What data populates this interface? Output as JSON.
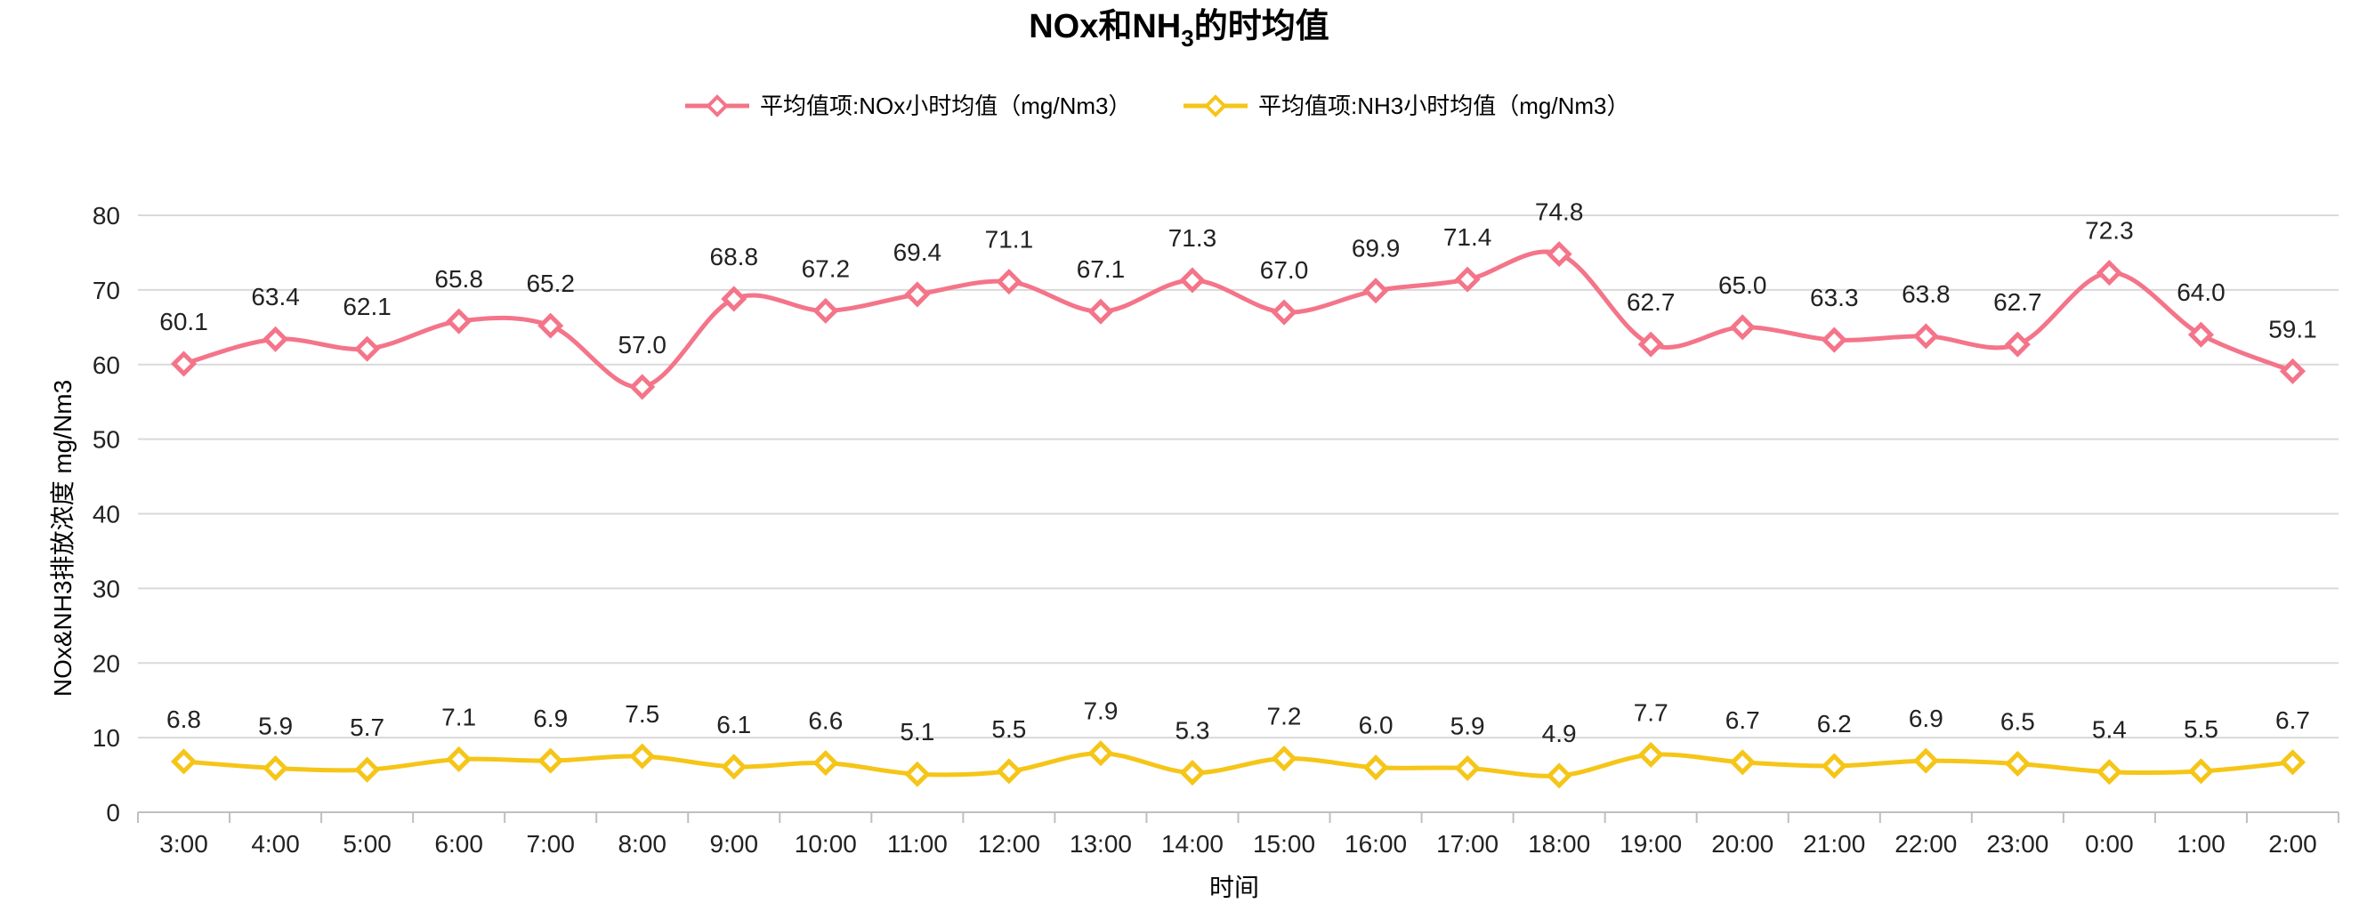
{
  "title": "NOx和NH3的时均值",
  "colors": {
    "nox": "#F47489",
    "nh3": "#F5C518",
    "grid": "#D9D9D9",
    "axis": "#BFBFBF"
  },
  "chart_data": {
    "type": "line",
    "title": "NOx和NH3的时均值",
    "xlabel": "时间",
    "ylabel": "NOx&NH3排放浓度 mg/Nm3",
    "ylim": [
      0,
      80
    ],
    "yticks": [
      0,
      10,
      20,
      30,
      40,
      50,
      60,
      70,
      80
    ],
    "grid": true,
    "legend_position": "top",
    "categories": [
      "3:00",
      "4:00",
      "5:00",
      "6:00",
      "7:00",
      "8:00",
      "9:00",
      "10:00",
      "11:00",
      "12:00",
      "13:00",
      "14:00",
      "15:00",
      "16:00",
      "17:00",
      "18:00",
      "19:00",
      "20:00",
      "21:00",
      "22:00",
      "23:00",
      "0:00",
      "1:00",
      "2:00"
    ],
    "series": [
      {
        "name": "平均值项:NOx小时均值（mg/Nm3）",
        "color": "#F47489",
        "marker": "diamond",
        "values": [
          60.1,
          63.4,
          62.1,
          65.8,
          65.2,
          57.0,
          68.8,
          67.2,
          69.4,
          71.1,
          67.1,
          71.3,
          67.0,
          69.9,
          71.4,
          74.8,
          62.7,
          65.0,
          63.3,
          63.8,
          62.7,
          72.3,
          64.0,
          59.1
        ]
      },
      {
        "name": "平均值项:NH3小时均值（mg/Nm3）",
        "color": "#F5C518",
        "marker": "diamond",
        "values": [
          6.8,
          5.9,
          5.7,
          7.1,
          6.9,
          7.5,
          6.1,
          6.6,
          5.1,
          5.5,
          7.9,
          5.3,
          7.2,
          6.0,
          5.9,
          4.9,
          7.7,
          6.7,
          6.2,
          6.9,
          6.5,
          5.4,
          5.5,
          6.7
        ]
      }
    ]
  }
}
